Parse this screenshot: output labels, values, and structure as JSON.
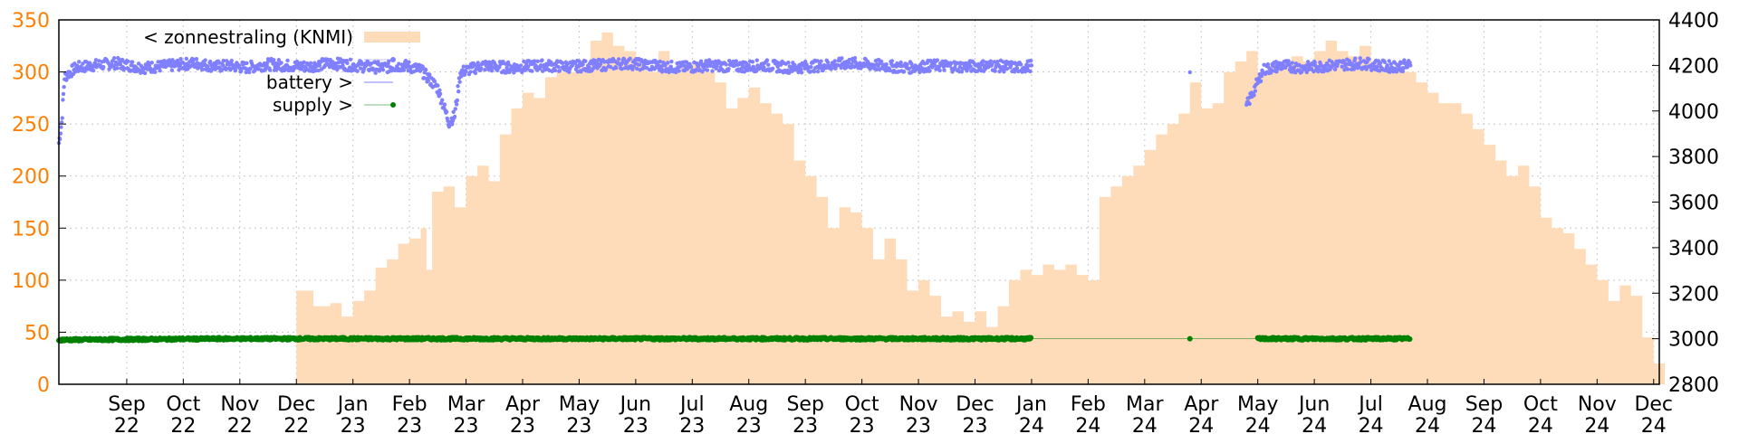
{
  "chart_data": {
    "type": "area",
    "title": "",
    "y_left": {
      "range": [
        0,
        350
      ],
      "ticks": [
        "0",
        "50",
        "100",
        "150",
        "200",
        "250",
        "300",
        "350"
      ],
      "color": "#ff7f00"
    },
    "y_right": {
      "range": [
        2800,
        4400
      ],
      "ticks": [
        "2800",
        "3000",
        "3200",
        "3400",
        "3600",
        "3800",
        "4000",
        "4200",
        "4400"
      ]
    },
    "x_range": [
      0,
      28.3
    ],
    "x_ticks": [
      {
        "x": 1.2,
        "month": "Sep",
        "year": "22"
      },
      {
        "x": 2.2,
        "month": "Oct",
        "year": "22"
      },
      {
        "x": 3.2,
        "month": "Nov",
        "year": "22"
      },
      {
        "x": 4.2,
        "month": "Dec",
        "year": "22"
      },
      {
        "x": 5.2,
        "month": "Jan",
        "year": "23"
      },
      {
        "x": 6.2,
        "month": "Feb",
        "year": "23"
      },
      {
        "x": 7.2,
        "month": "Mar",
        "year": "23"
      },
      {
        "x": 8.2,
        "month": "Apr",
        "year": "23"
      },
      {
        "x": 9.2,
        "month": "May",
        "year": "23"
      },
      {
        "x": 10.2,
        "month": "Jun",
        "year": "23"
      },
      {
        "x": 11.2,
        "month": "Jul",
        "year": "23"
      },
      {
        "x": 12.2,
        "month": "Aug",
        "year": "23"
      },
      {
        "x": 13.2,
        "month": "Sep",
        "year": "23"
      },
      {
        "x": 14.2,
        "month": "Oct",
        "year": "23"
      },
      {
        "x": 15.2,
        "month": "Nov",
        "year": "23"
      },
      {
        "x": 16.2,
        "month": "Dec",
        "year": "23"
      },
      {
        "x": 17.2,
        "month": "Jan",
        "year": "24"
      },
      {
        "x": 18.2,
        "month": "Feb",
        "year": "24"
      },
      {
        "x": 19.2,
        "month": "Mar",
        "year": "24"
      },
      {
        "x": 20.2,
        "month": "Apr",
        "year": "24"
      },
      {
        "x": 21.2,
        "month": "May",
        "year": "24"
      },
      {
        "x": 22.2,
        "month": "Jun",
        "year": "24"
      },
      {
        "x": 23.2,
        "month": "Jul",
        "year": "24"
      },
      {
        "x": 24.2,
        "month": "Aug",
        "year": "24"
      },
      {
        "x": 25.2,
        "month": "Sep",
        "year": "24"
      },
      {
        "x": 26.2,
        "month": "Oct",
        "year": "24"
      },
      {
        "x": 27.2,
        "month": "Nov",
        "year": "24"
      },
      {
        "x": 28.2,
        "month": "Dec",
        "year": "24"
      }
    ],
    "grid": true,
    "legend_placement": "top-left",
    "legend": [
      {
        "label": "< zonnestraling (KNMI)",
        "color": "#ffdcb9",
        "kind": "box"
      },
      {
        "label": "",
        "color": "#8080ff",
        "kind": "dots"
      },
      {
        "label": "battery >",
        "color": "#8080ff",
        "kind": "line"
      },
      {
        "label": "supply >",
        "color": "#008000",
        "kind": "dots"
      }
    ],
    "series": [
      {
        "name": "< zonnestraling (KNMI)",
        "axis": "left",
        "color": "#ffdcb9",
        "points": [
          [
            4.2,
            90
          ],
          [
            4.5,
            75
          ],
          [
            4.8,
            78
          ],
          [
            5.0,
            65
          ],
          [
            5.2,
            80
          ],
          [
            5.4,
            90
          ],
          [
            5.6,
            112
          ],
          [
            5.8,
            120
          ],
          [
            6.0,
            135
          ],
          [
            6.2,
            140
          ],
          [
            6.4,
            150
          ],
          [
            6.5,
            110
          ],
          [
            6.6,
            185
          ],
          [
            6.8,
            190
          ],
          [
            7.0,
            170
          ],
          [
            7.2,
            200
          ],
          [
            7.4,
            210
          ],
          [
            7.6,
            195
          ],
          [
            7.8,
            240
          ],
          [
            8.0,
            265
          ],
          [
            8.2,
            280
          ],
          [
            8.4,
            275
          ],
          [
            8.6,
            295
          ],
          [
            8.8,
            300
          ],
          [
            9.0,
            300
          ],
          [
            9.2,
            305
          ],
          [
            9.4,
            330
          ],
          [
            9.6,
            338
          ],
          [
            9.8,
            325
          ],
          [
            10.0,
            320
          ],
          [
            10.2,
            310
          ],
          [
            10.4,
            300
          ],
          [
            10.6,
            320
          ],
          [
            10.8,
            300
          ],
          [
            11.0,
            305
          ],
          [
            11.2,
            310
          ],
          [
            11.4,
            300
          ],
          [
            11.6,
            290
          ],
          [
            11.8,
            265
          ],
          [
            12.0,
            275
          ],
          [
            12.2,
            285
          ],
          [
            12.4,
            270
          ],
          [
            12.6,
            260
          ],
          [
            12.8,
            250
          ],
          [
            13.0,
            215
          ],
          [
            13.2,
            200
          ],
          [
            13.4,
            180
          ],
          [
            13.6,
            150
          ],
          [
            13.8,
            170
          ],
          [
            14.0,
            165
          ],
          [
            14.2,
            150
          ],
          [
            14.4,
            120
          ],
          [
            14.6,
            140
          ],
          [
            14.8,
            120
          ],
          [
            15.0,
            90
          ],
          [
            15.2,
            100
          ],
          [
            15.4,
            85
          ],
          [
            15.6,
            65
          ],
          [
            15.8,
            70
          ],
          [
            16.0,
            60
          ],
          [
            16.2,
            70
          ],
          [
            16.4,
            55
          ],
          [
            16.6,
            75
          ],
          [
            16.8,
            100
          ],
          [
            17.0,
            110
          ],
          [
            17.2,
            105
          ],
          [
            17.4,
            115
          ],
          [
            17.6,
            110
          ],
          [
            17.8,
            115
          ],
          [
            18.0,
            105
          ],
          [
            18.2,
            100
          ],
          [
            18.4,
            180
          ],
          [
            18.6,
            190
          ],
          [
            18.8,
            200
          ],
          [
            19.0,
            210
          ],
          [
            19.2,
            225
          ],
          [
            19.4,
            240
          ],
          [
            19.6,
            250
          ],
          [
            19.8,
            260
          ],
          [
            20.0,
            290
          ],
          [
            20.2,
            265
          ],
          [
            20.4,
            270
          ],
          [
            20.6,
            300
          ],
          [
            20.8,
            310
          ],
          [
            21.0,
            320
          ],
          [
            21.2,
            300
          ],
          [
            21.4,
            305
          ],
          [
            21.6,
            310
          ],
          [
            21.8,
            315
          ],
          [
            22.0,
            310
          ],
          [
            22.2,
            320
          ],
          [
            22.4,
            330
          ],
          [
            22.6,
            320
          ],
          [
            22.8,
            315
          ],
          [
            23.0,
            325
          ],
          [
            23.2,
            310
          ],
          [
            23.4,
            300
          ],
          [
            23.6,
            305
          ],
          [
            23.8,
            300
          ],
          [
            24.0,
            290
          ],
          [
            24.2,
            280
          ],
          [
            24.4,
            270
          ],
          [
            24.6,
            270
          ],
          [
            24.8,
            260
          ],
          [
            25.0,
            245
          ],
          [
            25.2,
            230
          ],
          [
            25.4,
            215
          ],
          [
            25.6,
            200
          ],
          [
            25.8,
            210
          ],
          [
            26.0,
            190
          ],
          [
            26.2,
            160
          ],
          [
            26.4,
            150
          ],
          [
            26.6,
            145
          ],
          [
            26.8,
            130
          ],
          [
            27.0,
            115
          ],
          [
            27.2,
            100
          ],
          [
            27.4,
            80
          ],
          [
            27.6,
            95
          ],
          [
            27.8,
            85
          ],
          [
            28.0,
            45
          ],
          [
            28.2,
            20
          ]
        ]
      },
      {
        "name": "",
        "axis": "right",
        "color": "#8080ff",
        "points": [
          [
            0.0,
            3860
          ],
          [
            0.05,
            3950
          ],
          [
            0.1,
            4150
          ],
          [
            0.3,
            4190
          ],
          [
            0.6,
            4200
          ],
          [
            1.0,
            4210
          ],
          [
            1.5,
            4190
          ],
          [
            2.0,
            4200
          ],
          [
            2.4,
            4210
          ],
          [
            2.8,
            4195
          ],
          [
            3.0,
            4200
          ],
          [
            3.3,
            4190
          ],
          [
            3.7,
            4205
          ],
          [
            4.0,
            4200
          ],
          [
            4.4,
            4195
          ],
          [
            4.8,
            4210
          ],
          [
            5.2,
            4200
          ],
          [
            5.7,
            4190
          ],
          [
            6.1,
            4200
          ],
          [
            6.4,
            4180
          ],
          [
            6.7,
            4100
          ],
          [
            6.9,
            3950
          ],
          [
            7.0,
            3980
          ],
          [
            7.1,
            4170
          ],
          [
            7.5,
            4200
          ],
          [
            8.0,
            4190
          ],
          [
            8.5,
            4200
          ],
          [
            9.0,
            4195
          ],
          [
            9.5,
            4200
          ],
          [
            10.0,
            4210
          ],
          [
            10.5,
            4200
          ],
          [
            11.0,
            4190
          ],
          [
            11.5,
            4200
          ],
          [
            12.0,
            4195
          ],
          [
            12.5,
            4200
          ],
          [
            13.0,
            4190
          ],
          [
            13.5,
            4200
          ],
          [
            14.0,
            4210
          ],
          [
            14.5,
            4200
          ],
          [
            15.0,
            4190
          ],
          [
            15.5,
            4200
          ],
          [
            16.0,
            4195
          ],
          [
            16.5,
            4200
          ],
          [
            17.0,
            4190
          ],
          [
            17.2,
            4200
          ],
          [
            20.0,
            4170
          ],
          [
            21.0,
            4020
          ],
          [
            21.3,
            4180
          ],
          [
            21.6,
            4200
          ],
          [
            22.0,
            4190
          ],
          [
            22.5,
            4200
          ],
          [
            23.0,
            4210
          ],
          [
            23.5,
            4195
          ],
          [
            23.9,
            4200
          ]
        ]
      },
      {
        "name": "supply >",
        "axis": "right",
        "color": "#008000",
        "points": [
          [
            0.0,
            2995
          ],
          [
            3.0,
            3000
          ],
          [
            6.0,
            3000
          ],
          [
            9.0,
            3000
          ],
          [
            12.0,
            3000
          ],
          [
            15.0,
            3000
          ],
          [
            17.2,
            3000
          ],
          [
            20.0,
            3000
          ],
          [
            21.2,
            3000
          ],
          [
            23.9,
            3000
          ]
        ]
      }
    ]
  }
}
